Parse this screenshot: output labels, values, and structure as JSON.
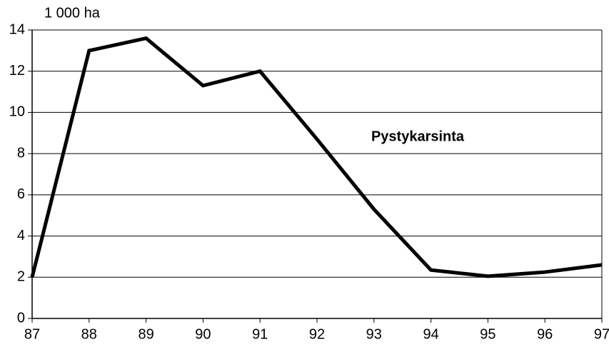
{
  "chart_data": {
    "type": "line",
    "y_unit_label": "1 000 ha",
    "annotation": "Pystykarsinta",
    "x": [
      87,
      88,
      89,
      90,
      91,
      92,
      93,
      94,
      95,
      96,
      97
    ],
    "series": [
      {
        "color": "#000000",
        "values": [
          2.0,
          13.0,
          13.6,
          11.3,
          12.0,
          8.7,
          5.3,
          2.35,
          2.05,
          2.25,
          2.6
        ]
      }
    ],
    "xlim": [
      87,
      97
    ],
    "xticks": [
      87,
      88,
      89,
      90,
      91,
      92,
      93,
      94,
      95,
      96,
      97
    ],
    "ylim": [
      0,
      14
    ],
    "yticks": [
      0,
      2,
      4,
      6,
      8,
      10,
      12,
      14
    ],
    "grid": true
  }
}
